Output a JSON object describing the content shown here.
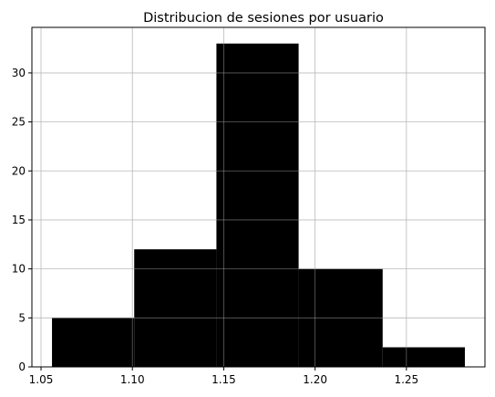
{
  "chart_data": {
    "type": "bar",
    "title": "Distribucion de sesiones por usuario",
    "xlabel": "",
    "ylabel": "",
    "bins": [
      {
        "start": 1.056,
        "end": 1.101,
        "count": 5
      },
      {
        "start": 1.101,
        "end": 1.146,
        "count": 12
      },
      {
        "start": 1.146,
        "end": 1.191,
        "count": 33
      },
      {
        "start": 1.191,
        "end": 1.237,
        "count": 10
      },
      {
        "start": 1.237,
        "end": 1.282,
        "count": 2
      }
    ],
    "xlim": [
      1.045,
      1.293
    ],
    "ylim": [
      0,
      34.65
    ],
    "xticks": [
      1.05,
      1.1,
      1.15,
      1.2,
      1.25
    ],
    "xtick_labels": [
      "1.05",
      "1.10",
      "1.15",
      "1.20",
      "1.25"
    ],
    "yticks": [
      0,
      5,
      10,
      15,
      20,
      25,
      30
    ],
    "ytick_labels": [
      "0",
      "5",
      "10",
      "15",
      "20",
      "25",
      "30"
    ],
    "grid": true,
    "bar_color": "#000000",
    "grid_color": "#b0b0b0"
  }
}
